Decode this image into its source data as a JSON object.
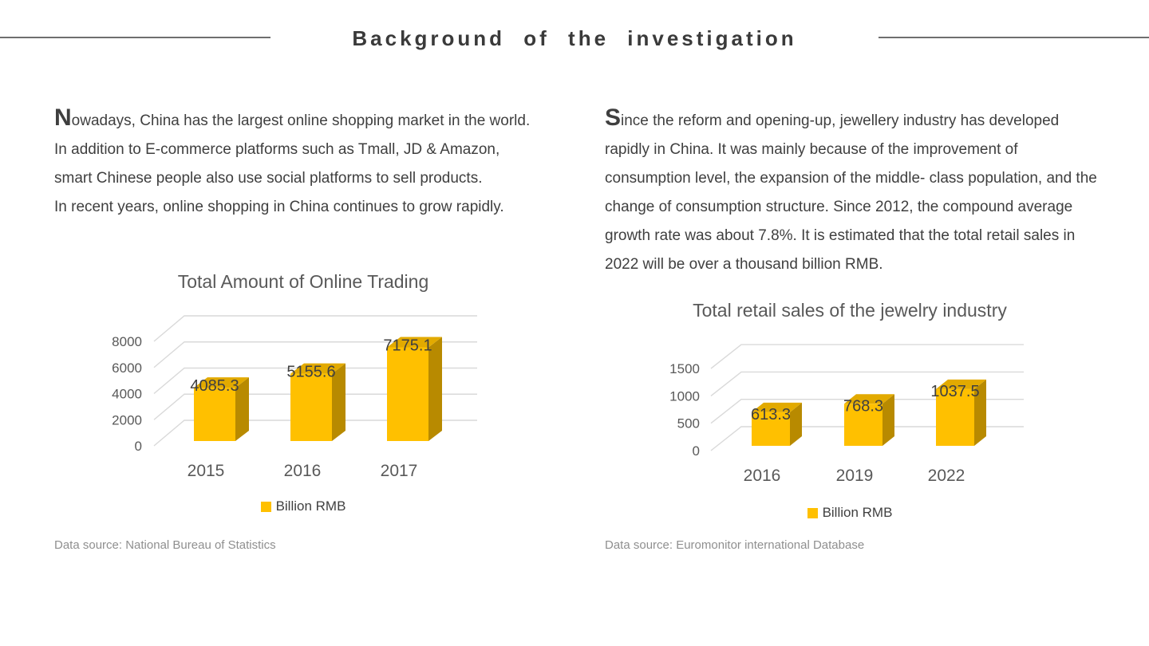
{
  "slide": {
    "title": "Background of the investigation"
  },
  "left_section": {
    "dropcap": "N",
    "paragraph": "owadays, China has the largest online shopping market in the world. In addition to E-commerce platforms such as Tmall, JD & Amazon, smart Chinese people also use social platforms to sell products.",
    "paragraph2": "In recent years, online shopping in China continues to grow rapidly.",
    "data_source": "Data source: National Bureau of Statistics"
  },
  "right_section": {
    "dropcap": "S",
    "paragraph": "ince the reform and opening-up, jewellery industry has developed rapidly in China. It was mainly because of the improvement of consumption level, the expansion of the middle- class population, and the change of consumption structure. Since 2012, the compound average growth rate was about 7.8%. It is estimated that the total retail sales in 2022 will be over a thousand billion RMB.",
    "data_source": "Data source: Euromonitor international Database"
  },
  "chart_data": [
    {
      "id": "online-trading",
      "type": "bar",
      "style": "3d",
      "title": "Total Amount of Online Trading",
      "categories": [
        "2015",
        "2016",
        "2017"
      ],
      "values": [
        4085.3,
        5155.6,
        7175.1
      ],
      "data_labels": [
        "4085.3",
        "5155.6",
        "7175.1"
      ],
      "legend": [
        "Billion RMB"
      ],
      "legend_position": "bottom",
      "ylim": [
        0,
        8000
      ],
      "yticks": [
        0,
        2000,
        4000,
        6000,
        8000
      ],
      "grid": true,
      "bar_color": "#FFC000"
    },
    {
      "id": "jewelry-retail",
      "type": "bar",
      "style": "3d",
      "title": "Total retail sales of the jewelry industry",
      "categories": [
        "2016",
        "2019",
        "2022"
      ],
      "values": [
        613.3,
        768.3,
        1037.5
      ],
      "data_labels": [
        "613.3",
        "768.3",
        "1037.5"
      ],
      "legend": [
        "Billion RMB"
      ],
      "legend_position": "bottom",
      "ylim": [
        0,
        1500
      ],
      "yticks": [
        0,
        500,
        1000,
        1500
      ],
      "grid": true,
      "bar_color": "#FFC000"
    }
  ],
  "colors": {
    "bar_front": "#FFC000",
    "bar_top": "#E2AA00",
    "bar_side": "#B88A00",
    "grid_line": "#D9D9D9",
    "divider": "#6E6E6E",
    "text_dark": "#3F3F3F",
    "text_gray": "#595959",
    "text_muted": "#8F8F8F"
  }
}
